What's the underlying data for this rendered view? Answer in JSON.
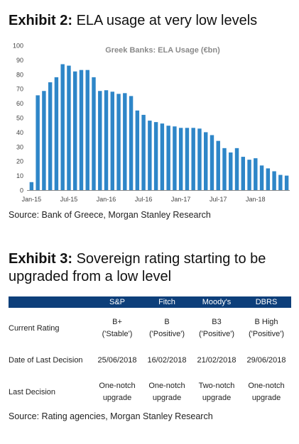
{
  "exhibit2": {
    "number": "Exhibit 2:",
    "title": "ELA usage at very low levels",
    "source": "Source: Bank of Greece, Morgan Stanley Research"
  },
  "chart_data": {
    "type": "bar",
    "title": "Greek Banks: ELA Usage (€bn)",
    "xlabel": "",
    "ylabel": "",
    "ylim": [
      0,
      100
    ],
    "yticks": [
      "0",
      "10",
      "20",
      "30",
      "40",
      "50",
      "60",
      "70",
      "80",
      "90",
      "100"
    ],
    "xticks": [
      "Jan-15",
      "Jul-15",
      "Jan-16",
      "Jul-16",
      "Jan-17",
      "Jul-17",
      "Jan-18"
    ],
    "xtick_index": [
      0,
      6,
      12,
      18,
      24,
      30,
      36
    ],
    "bar_color": "#2e86c8",
    "grid": false,
    "categories": [
      "Jan-15",
      "Feb-15",
      "Mar-15",
      "Apr-15",
      "May-15",
      "Jun-15",
      "Jul-15",
      "Aug-15",
      "Sep-15",
      "Oct-15",
      "Nov-15",
      "Dec-15",
      "Jan-16",
      "Feb-16",
      "Mar-16",
      "Apr-16",
      "May-16",
      "Jun-16",
      "Jul-16",
      "Aug-16",
      "Sep-16",
      "Oct-16",
      "Nov-16",
      "Dec-16",
      "Jan-17",
      "Feb-17",
      "Mar-17",
      "Apr-17",
      "May-17",
      "Jun-17",
      "Jul-17",
      "Aug-17",
      "Sep-17",
      "Oct-17",
      "Nov-17",
      "Dec-17",
      "Jan-18",
      "Feb-18",
      "Mar-18",
      "Apr-18",
      "May-18",
      "Jun-18"
    ],
    "values": [
      5.5,
      65.5,
      68.5,
      74.5,
      78,
      87,
      86,
      82,
      83,
      83,
      78,
      68.5,
      69,
      68,
      66.5,
      67,
      65,
      55,
      52,
      48,
      47,
      46,
      44.5,
      44,
      43,
      43,
      43,
      42.5,
      40,
      38,
      34,
      29,
      26,
      29,
      23,
      21,
      22,
      17,
      15,
      13,
      10.5,
      10
    ]
  },
  "exhibit3": {
    "number": "Exhibit 3:",
    "title": "Sovereign rating starting to be upgraded from a low level",
    "source": "Source: Rating agencies, Morgan Stanley Research",
    "header_color": "#0d3f7a",
    "columns": [
      "S&P",
      "Fitch",
      "Moody's",
      "DBRS"
    ],
    "rows": [
      {
        "label": "Current Rating",
        "cells": [
          {
            "l1": "B+",
            "l2": "('Stable')"
          },
          {
            "l1": "B",
            "l2": "('Positive')"
          },
          {
            "l1": "B3",
            "l2": "('Positive')"
          },
          {
            "l1": "B High",
            "l2": "('Positive')"
          }
        ]
      },
      {
        "label": "Date of Last Decision",
        "cells": [
          {
            "l1": "25/06/2018",
            "l2": ""
          },
          {
            "l1": "16/02/2018",
            "l2": ""
          },
          {
            "l1": "21/02/2018",
            "l2": ""
          },
          {
            "l1": "29/06/2018",
            "l2": ""
          }
        ]
      },
      {
        "label": "Last Decision",
        "cells": [
          {
            "l1": "One-notch",
            "l2": "upgrade"
          },
          {
            "l1": "One-notch",
            "l2": "upgrade"
          },
          {
            "l1": "Two-notch",
            "l2": "upgrade"
          },
          {
            "l1": "One-notch",
            "l2": "upgrade"
          }
        ]
      }
    ]
  }
}
